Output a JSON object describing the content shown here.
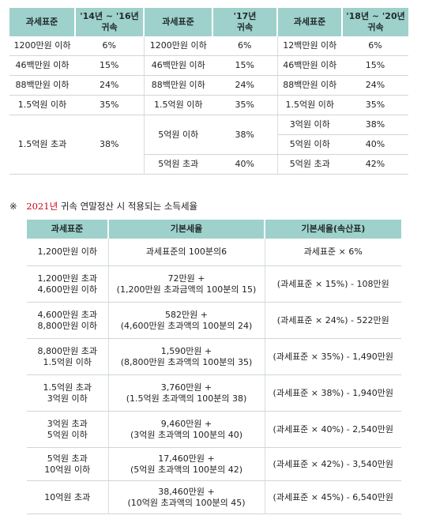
{
  "table1": {
    "headers": [
      "과세표준",
      "'14년 ~ '16년\n귀속",
      "과세표준",
      "'17년\n귀속",
      "과세표준",
      "'18년 ~ '20년\n귀속"
    ],
    "a": {
      "rows": [
        [
          "1200만원 이하",
          "6%"
        ],
        [
          "46백만원 이하",
          "15%"
        ],
        [
          "88백만원 이하",
          "24%"
        ],
        [
          "1.5억원 이하",
          "35%"
        ],
        [
          "1.5억원 초과",
          "38%"
        ]
      ]
    },
    "b": {
      "rows": [
        [
          "1200만원 이하",
          "6%"
        ],
        [
          "46백만원 이하",
          "15%"
        ],
        [
          "88백만원 이하",
          "24%"
        ],
        [
          "1.5억원 이하",
          "35%"
        ],
        [
          "5억원 이하",
          "38%"
        ],
        [
          "5억원 초과",
          "40%"
        ]
      ]
    },
    "c": {
      "rows": [
        [
          "12백만원 이하",
          "6%"
        ],
        [
          "46백만원 이하",
          "15%"
        ],
        [
          "88백만원 이하",
          "24%"
        ],
        [
          "1.5억원 이하",
          "35%"
        ],
        [
          "3억원 이하",
          "38%"
        ],
        [
          "5억원 이하",
          "40%"
        ],
        [
          "5억원 초과",
          "42%"
        ]
      ]
    }
  },
  "note": {
    "mark": "※",
    "year": "2021년",
    "text": "귀속 연말정산 시 적용되는 소득세율"
  },
  "table2": {
    "headers": [
      "과세표준",
      "기본세율",
      "기본세율(속산표)"
    ],
    "rows": [
      {
        "bracket": [
          "1,200만원 이하"
        ],
        "basic": [
          "과세표준의 100분의6"
        ],
        "quick": "과세표준 × 6%"
      },
      {
        "bracket": [
          "1,200만원 초과",
          "4,600만원 이하"
        ],
        "basic": [
          "72만원 +",
          "(1,200만원 초과금액의 100분의 15)"
        ],
        "quick": "(과세표준 × 15%) - 108만원"
      },
      {
        "bracket": [
          "4,600만원 초과",
          "8,800만원 이하"
        ],
        "basic": [
          "582만원 +",
          "(4,600만원 초과액의 100분의 24)"
        ],
        "quick": "(과세표준 × 24%) - 522만원"
      },
      {
        "bracket": [
          "8,800만원 초과",
          "1.5억원 이하"
        ],
        "basic": [
          "1,590만원 +",
          "(8,800만원 초과액의 100분의 35)"
        ],
        "quick": "(과세표준 × 35%) - 1,490만원"
      },
      {
        "bracket": [
          "1.5억원 초과",
          "3억원 이하"
        ],
        "basic": [
          "3,760만원 +",
          "(1.5억원 초과액의 100분의 38)"
        ],
        "quick": "(과세표준 × 38%) - 1,940만원"
      },
      {
        "bracket": [
          "3억원 초과",
          "5억원 이하"
        ],
        "basic": [
          "9,460만원 +",
          "(3억원 초과액의 100분의 40)"
        ],
        "quick": "(과세표준 × 40%) - 2,540만원"
      },
      {
        "bracket": [
          "5억원 초과",
          "10억원 이하"
        ],
        "basic": [
          "17,460만원 +",
          "(5억원 초과액의 100분의 42)"
        ],
        "quick": "(과세표준 × 42%) - 3,540만원"
      },
      {
        "bracket": [
          "10억원 초과"
        ],
        "basic": [
          "38,460만원 +",
          "(10억원 초과액의 100분의 45)"
        ],
        "quick": "(과세표준 × 45%) - 6,540만원"
      }
    ]
  }
}
